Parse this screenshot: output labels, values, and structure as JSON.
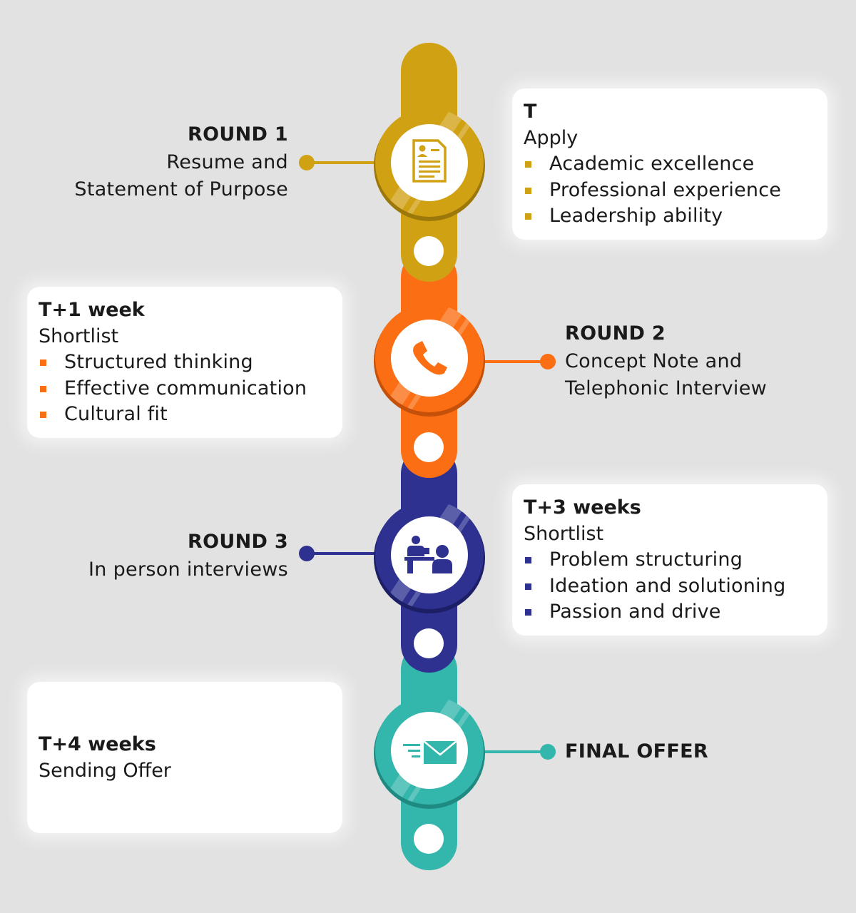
{
  "colors": {
    "gold": "#d1a114",
    "orange": "#fb6e13",
    "navy": "#2e3190",
    "teal": "#33b6ac",
    "background": "#e2e2e2"
  },
  "steps": [
    {
      "round": "ROUND 1",
      "description_lines": [
        "Resume and",
        "Statement of Purpose"
      ],
      "time": "T",
      "stage": "Apply",
      "criteria": [
        "Academic excellence",
        "Professional experience",
        "Leadership ability"
      ],
      "icon": "resume-icon",
      "color": "#d1a114"
    },
    {
      "round": "ROUND 2",
      "description_lines": [
        "Concept Note and",
        "Telephonic Interview"
      ],
      "time": "T+1 week",
      "stage": "Shortlist",
      "criteria": [
        "Structured thinking",
        "Effective communication",
        "Cultural fit"
      ],
      "icon": "phone-icon",
      "color": "#fb6e13"
    },
    {
      "round": "ROUND 3",
      "description_lines": [
        "In person interviews"
      ],
      "time": "T+3 weeks",
      "stage": "Shortlist",
      "criteria": [
        "Problem structuring",
        "Ideation and solutioning",
        "Passion and drive"
      ],
      "icon": "interview-icon",
      "color": "#2e3190"
    },
    {
      "round": "FINAL OFFER",
      "description_lines": [],
      "time": "T+4 weeks",
      "stage": "Sending Offer",
      "criteria": [],
      "icon": "email-icon",
      "color": "#33b6ac"
    }
  ]
}
